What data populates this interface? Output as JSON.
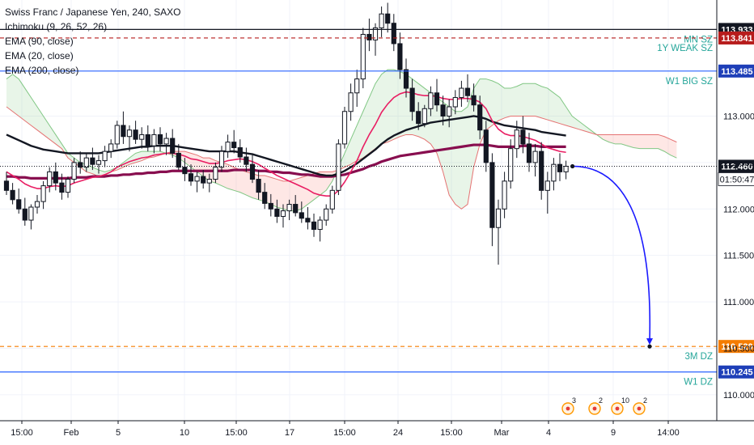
{
  "chart_data": {
    "type": "candlestick",
    "title": "Swiss Franc / Japanese Yen, 240, SAXO",
    "indicators": [
      {
        "name": "Ichimoku (9, 26, 52, 26)"
      },
      {
        "name": "EMA (90, close)",
        "color": "#131722"
      },
      {
        "name": "EMA (20, close)",
        "color": "#e91e63"
      },
      {
        "name": "EMA (200, close)",
        "color": "#880e4f"
      }
    ],
    "ylim": [
      109.72,
      114.25
    ],
    "y_ticks": [
      110.0,
      110.5,
      111.0,
      111.5,
      112.0,
      112.5,
      113.0
    ],
    "x_ticks": [
      "15:00",
      "Feb",
      "5",
      "10",
      "15:00",
      "17",
      "15:00",
      "24",
      "15:00",
      "Mar",
      "4",
      "9",
      "14:00"
    ],
    "horizontal_levels": [
      {
        "label": "MN SZ",
        "price": 113.933,
        "color": "#131722",
        "style": "solid",
        "tag_bg": "#131722"
      },
      {
        "label": "1Y WEAK SZ",
        "price": 113.841,
        "color": "#b71c1c",
        "style": "dashed",
        "tag_bg": "#b71c1c"
      },
      {
        "label": "W1 BIG SZ",
        "price": 113.485,
        "color": "#2962ff",
        "style": "solid",
        "tag_bg": "#1e3fb8"
      },
      {
        "label": "3M DZ",
        "price": 110.52,
        "color": "#f57c00",
        "style": "dashed",
        "tag_bg": "#f57c00"
      },
      {
        "label": "W1 DZ",
        "price": 110.245,
        "color": "#2962ff",
        "style": "solid",
        "tag_bg": "#1e3fb8"
      }
    ],
    "current_price": 112.46,
    "countdown": "01:50:47",
    "projection": {
      "from": 112.46,
      "to": 110.52
    },
    "candles": [
      [
        112.3,
        112.4,
        112.15,
        112.2
      ],
      [
        112.2,
        112.28,
        112.05,
        112.1
      ],
      [
        112.1,
        112.22,
        111.95,
        112.0
      ],
      [
        112.0,
        112.12,
        111.82,
        111.88
      ],
      [
        111.88,
        112.05,
        111.78,
        112.02
      ],
      [
        112.02,
        112.15,
        111.95,
        112.08
      ],
      [
        112.08,
        112.3,
        112.0,
        112.25
      ],
      [
        112.25,
        112.45,
        112.18,
        112.4
      ],
      [
        112.4,
        112.5,
        112.2,
        112.28
      ],
      [
        112.28,
        112.38,
        112.1,
        112.18
      ],
      [
        112.18,
        112.35,
        112.12,
        112.32
      ],
      [
        112.32,
        112.55,
        112.28,
        112.5
      ],
      [
        112.5,
        112.62,
        112.38,
        112.45
      ],
      [
        112.45,
        112.6,
        112.4,
        112.55
      ],
      [
        112.55,
        112.66,
        112.42,
        112.48
      ],
      [
        112.48,
        112.58,
        112.38,
        112.52
      ],
      [
        112.52,
        112.68,
        112.45,
        112.62
      ],
      [
        112.62,
        112.75,
        112.55,
        112.7
      ],
      [
        112.7,
        112.95,
        112.65,
        112.9
      ],
      [
        112.9,
        113.05,
        112.7,
        112.78
      ],
      [
        112.78,
        112.9,
        112.62,
        112.85
      ],
      [
        112.85,
        112.95,
        112.7,
        112.75
      ],
      [
        112.75,
        112.88,
        112.65,
        112.8
      ],
      [
        112.8,
        112.9,
        112.62,
        112.68
      ],
      [
        112.68,
        112.86,
        112.6,
        112.8
      ],
      [
        112.8,
        112.88,
        112.62,
        112.7
      ],
      [
        112.7,
        112.82,
        112.58,
        112.76
      ],
      [
        112.76,
        112.86,
        112.55,
        112.6
      ],
      [
        112.6,
        112.7,
        112.42,
        112.45
      ],
      [
        112.45,
        112.55,
        112.3,
        112.38
      ],
      [
        112.38,
        112.48,
        112.25,
        112.3
      ],
      [
        112.3,
        112.4,
        112.18,
        112.35
      ],
      [
        112.35,
        112.42,
        112.22,
        112.28
      ],
      [
        112.28,
        112.38,
        112.18,
        112.32
      ],
      [
        112.32,
        112.5,
        112.28,
        112.45
      ],
      [
        112.45,
        112.68,
        112.4,
        112.62
      ],
      [
        112.62,
        112.8,
        112.55,
        112.72
      ],
      [
        112.72,
        112.85,
        112.6,
        112.66
      ],
      [
        112.66,
        112.75,
        112.5,
        112.56
      ],
      [
        112.56,
        112.66,
        112.4,
        112.48
      ],
      [
        112.48,
        112.58,
        112.28,
        112.32
      ],
      [
        112.32,
        112.42,
        112.1,
        112.18
      ],
      [
        112.18,
        112.28,
        112.0,
        112.06
      ],
      [
        112.06,
        112.16,
        111.92,
        112.0
      ],
      [
        112.0,
        112.1,
        111.85,
        111.92
      ],
      [
        111.92,
        112.05,
        111.8,
        111.98
      ],
      [
        111.98,
        112.1,
        111.88,
        112.05
      ],
      [
        112.05,
        112.15,
        111.92,
        111.96
      ],
      [
        111.96,
        112.08,
        111.85,
        111.9
      ],
      [
        111.9,
        112.02,
        111.78,
        111.86
      ],
      [
        111.86,
        111.95,
        111.7,
        111.78
      ],
      [
        111.78,
        111.92,
        111.65,
        111.88
      ],
      [
        111.88,
        112.05,
        111.82,
        112.0
      ],
      [
        112.0,
        112.25,
        111.95,
        112.2
      ],
      [
        112.2,
        112.75,
        112.15,
        112.7
      ],
      [
        112.7,
        113.1,
        112.65,
        113.05
      ],
      [
        113.05,
        113.35,
        112.95,
        113.25
      ],
      [
        113.25,
        113.5,
        113.1,
        113.4
      ],
      [
        113.4,
        113.95,
        113.3,
        113.88
      ],
      [
        113.88,
        114.05,
        113.7,
        113.82
      ],
      [
        113.82,
        114.0,
        113.65,
        113.95
      ],
      [
        113.95,
        114.18,
        113.85,
        114.1
      ],
      [
        114.1,
        114.22,
        113.9,
        114.0
      ],
      [
        114.0,
        114.1,
        113.7,
        113.78
      ],
      [
        113.78,
        113.9,
        113.4,
        113.5
      ],
      [
        113.5,
        113.62,
        113.2,
        113.3
      ],
      [
        113.3,
        113.4,
        112.95,
        113.05
      ],
      [
        113.05,
        113.15,
        112.85,
        112.92
      ],
      [
        112.92,
        113.12,
        112.88,
        113.08
      ],
      [
        113.08,
        113.32,
        113.0,
        113.25
      ],
      [
        113.25,
        113.4,
        113.05,
        113.12
      ],
      [
        113.12,
        113.22,
        112.9,
        113.0
      ],
      [
        113.0,
        113.18,
        112.88,
        113.1
      ],
      [
        113.1,
        113.28,
        113.02,
        113.2
      ],
      [
        113.2,
        113.38,
        113.1,
        113.3
      ],
      [
        113.3,
        113.45,
        113.15,
        113.22
      ],
      [
        113.22,
        113.35,
        113.05,
        113.12
      ],
      [
        113.12,
        113.22,
        112.75,
        112.85
      ],
      [
        112.85,
        112.95,
        112.4,
        112.5
      ],
      [
        112.5,
        112.6,
        111.6,
        111.8
      ],
      [
        111.8,
        112.1,
        111.4,
        112.0
      ],
      [
        112.0,
        112.4,
        111.9,
        112.3
      ],
      [
        112.3,
        112.75,
        112.22,
        112.65
      ],
      [
        112.65,
        112.95,
        112.55,
        112.85
      ],
      [
        112.85,
        113.0,
        112.6,
        112.7
      ],
      [
        112.7,
        112.82,
        112.4,
        112.5
      ],
      [
        112.5,
        112.7,
        112.35,
        112.62
      ],
      [
        112.62,
        112.72,
        112.1,
        112.2
      ],
      [
        112.2,
        112.4,
        111.95,
        112.3
      ],
      [
        112.3,
        112.55,
        112.2,
        112.48
      ],
      [
        112.48,
        112.6,
        112.3,
        112.4
      ],
      [
        112.4,
        112.52,
        112.32,
        112.46
      ]
    ],
    "ema90": [
      112.8,
      112.77,
      112.74,
      112.71,
      112.68,
      112.66,
      112.64,
      112.63,
      112.62,
      112.61,
      112.6,
      112.6,
      112.6,
      112.6,
      112.6,
      112.6,
      112.61,
      112.62,
      112.63,
      112.64,
      112.65,
      112.66,
      112.67,
      112.67,
      112.68,
      112.68,
      112.68,
      112.68,
      112.67,
      112.66,
      112.65,
      112.64,
      112.63,
      112.62,
      112.62,
      112.62,
      112.62,
      112.62,
      112.61,
      112.6,
      112.59,
      112.57,
      112.55,
      112.53,
      112.51,
      112.49,
      112.47,
      112.45,
      112.43,
      112.41,
      112.39,
      112.37,
      112.36,
      112.36,
      112.38,
      112.41,
      112.45,
      112.49,
      112.54,
      112.59,
      112.64,
      112.7,
      112.75,
      112.79,
      112.82,
      112.85,
      112.87,
      112.89,
      112.91,
      112.93,
      112.94,
      112.95,
      112.96,
      112.97,
      112.98,
      112.99,
      113.0,
      112.99,
      112.97,
      112.94,
      112.92,
      112.9,
      112.89,
      112.88,
      112.87,
      112.86,
      112.85,
      112.83,
      112.82,
      112.81,
      112.8,
      112.79
    ],
    "ema20": [
      112.4,
      112.36,
      112.32,
      112.27,
      112.24,
      112.22,
      112.22,
      112.24,
      112.25,
      112.24,
      112.25,
      112.28,
      112.3,
      112.32,
      112.34,
      112.35,
      112.37,
      112.4,
      112.45,
      112.48,
      112.51,
      112.53,
      112.55,
      112.56,
      112.58,
      112.59,
      112.6,
      112.6,
      112.59,
      112.57,
      112.54,
      112.53,
      112.51,
      112.49,
      112.49,
      112.5,
      112.52,
      112.53,
      112.54,
      112.53,
      112.51,
      112.48,
      112.44,
      112.4,
      112.36,
      112.33,
      112.3,
      112.27,
      112.24,
      112.21,
      112.17,
      112.15,
      112.14,
      112.14,
      112.2,
      112.29,
      112.4,
      112.52,
      112.67,
      112.8,
      112.91,
      113.04,
      113.13,
      113.2,
      113.24,
      113.26,
      113.25,
      113.23,
      113.22,
      113.22,
      113.21,
      113.19,
      113.18,
      113.18,
      113.19,
      113.19,
      113.18,
      113.15,
      113.08,
      112.95,
      112.86,
      112.81,
      112.79,
      112.79,
      112.78,
      112.76,
      112.74,
      112.7,
      112.66,
      112.64,
      112.62,
      112.61
    ],
    "ema200": [
      112.35,
      112.35,
      112.34,
      112.34,
      112.33,
      112.33,
      112.33,
      112.33,
      112.33,
      112.33,
      112.33,
      112.34,
      112.34,
      112.34,
      112.35,
      112.35,
      112.35,
      112.36,
      112.36,
      112.37,
      112.37,
      112.38,
      112.38,
      112.39,
      112.39,
      112.4,
      112.4,
      112.41,
      112.41,
      112.41,
      112.41,
      112.41,
      112.41,
      112.41,
      112.41,
      112.41,
      112.41,
      112.42,
      112.42,
      112.42,
      112.42,
      112.41,
      112.41,
      112.4,
      112.4,
      112.39,
      112.39,
      112.38,
      112.37,
      112.37,
      112.36,
      112.35,
      112.35,
      112.35,
      112.36,
      112.37,
      112.39,
      112.41,
      112.43,
      112.46,
      112.48,
      112.51,
      112.53,
      112.55,
      112.57,
      112.58,
      112.59,
      112.6,
      112.61,
      112.62,
      112.63,
      112.64,
      112.65,
      112.66,
      112.67,
      112.68,
      112.69,
      112.69,
      112.69,
      112.68,
      112.67,
      112.67,
      112.67,
      112.67,
      112.68,
      112.68,
      112.68,
      112.67,
      112.67,
      112.67,
      112.67,
      112.67
    ],
    "cloud": [
      [
        113.4,
        113.1
      ],
      [
        113.45,
        113.05
      ],
      [
        113.4,
        113.0
      ],
      [
        113.3,
        112.95
      ],
      [
        113.2,
        112.9
      ],
      [
        113.1,
        112.85
      ],
      [
        113.0,
        112.8
      ],
      [
        112.9,
        112.75
      ],
      [
        112.8,
        112.7
      ],
      [
        112.7,
        112.65
      ],
      [
        112.6,
        112.55
      ],
      [
        112.55,
        112.5
      ],
      [
        112.5,
        112.45
      ],
      [
        112.48,
        112.4
      ],
      [
        112.45,
        112.38
      ],
      [
        112.42,
        112.35
      ],
      [
        112.4,
        112.36
      ],
      [
        112.42,
        112.4
      ],
      [
        112.45,
        112.42
      ],
      [
        112.5,
        112.45
      ],
      [
        112.55,
        112.48
      ],
      [
        112.6,
        112.5
      ],
      [
        112.62,
        112.52
      ],
      [
        112.62,
        112.55
      ],
      [
        112.62,
        112.56
      ],
      [
        112.62,
        112.58
      ],
      [
        112.6,
        112.6
      ],
      [
        112.58,
        112.62
      ],
      [
        112.55,
        112.62
      ],
      [
        112.5,
        112.62
      ],
      [
        112.45,
        112.6
      ],
      [
        112.4,
        112.58
      ],
      [
        112.35,
        112.55
      ],
      [
        112.3,
        112.55
      ],
      [
        112.28,
        112.52
      ],
      [
        112.25,
        112.5
      ],
      [
        112.22,
        112.48
      ],
      [
        112.2,
        112.45
      ],
      [
        112.18,
        112.42
      ],
      [
        112.15,
        112.4
      ],
      [
        112.12,
        112.38
      ],
      [
        112.1,
        112.36
      ],
      [
        112.08,
        112.36
      ],
      [
        112.05,
        112.34
      ],
      [
        112.02,
        112.32
      ],
      [
        112.0,
        112.3
      ],
      [
        111.98,
        112.3
      ],
      [
        111.98,
        112.32
      ],
      [
        112.0,
        112.34
      ],
      [
        112.05,
        112.36
      ],
      [
        112.1,
        112.38
      ],
      [
        112.15,
        112.4
      ],
      [
        112.2,
        112.4
      ],
      [
        112.3,
        112.4
      ],
      [
        112.45,
        112.42
      ],
      [
        112.6,
        112.45
      ],
      [
        112.75,
        112.48
      ],
      [
        112.9,
        112.52
      ],
      [
        113.05,
        112.55
      ],
      [
        113.2,
        112.6
      ],
      [
        113.35,
        112.65
      ],
      [
        113.45,
        112.7
      ],
      [
        113.5,
        112.72
      ],
      [
        113.5,
        112.75
      ],
      [
        113.48,
        112.78
      ],
      [
        113.45,
        112.8
      ],
      [
        113.4,
        112.8
      ],
      [
        113.35,
        112.78
      ],
      [
        113.3,
        112.75
      ],
      [
        113.25,
        112.7
      ],
      [
        113.2,
        112.6
      ],
      [
        113.15,
        112.4
      ],
      [
        113.1,
        112.15
      ],
      [
        113.05,
        112.05
      ],
      [
        113.05,
        112.0
      ],
      [
        113.1,
        112.05
      ],
      [
        113.3,
        112.45
      ],
      [
        113.4,
        112.7
      ],
      [
        113.4,
        112.85
      ],
      [
        113.38,
        112.9
      ],
      [
        113.35,
        112.95
      ],
      [
        113.3,
        112.98
      ],
      [
        113.3,
        113.0
      ],
      [
        113.32,
        113.0
      ],
      [
        113.35,
        113.0
      ],
      [
        113.35,
        113.0
      ],
      [
        113.35,
        113.0
      ],
      [
        113.32,
        112.98
      ],
      [
        113.3,
        112.96
      ],
      [
        113.25,
        112.94
      ],
      [
        113.2,
        112.92
      ],
      [
        113.1,
        112.9
      ],
      [
        113.0,
        112.88
      ],
      [
        112.95,
        112.86
      ],
      [
        112.9,
        112.84
      ],
      [
        112.85,
        112.82
      ],
      [
        112.8,
        112.8
      ],
      [
        112.75,
        112.8
      ],
      [
        112.72,
        112.8
      ],
      [
        112.7,
        112.8
      ],
      [
        112.7,
        112.8
      ],
      [
        112.68,
        112.8
      ],
      [
        112.66,
        112.8
      ],
      [
        112.65,
        112.8
      ],
      [
        112.65,
        112.8
      ],
      [
        112.65,
        112.8
      ],
      [
        112.65,
        112.8
      ],
      [
        112.62,
        112.78
      ],
      [
        112.58,
        112.75
      ],
      [
        112.55,
        112.72
      ]
    ],
    "events": [
      {
        "count": "3"
      },
      {
        "count": "2"
      },
      {
        "count": "10"
      },
      {
        "count": "2"
      }
    ]
  }
}
